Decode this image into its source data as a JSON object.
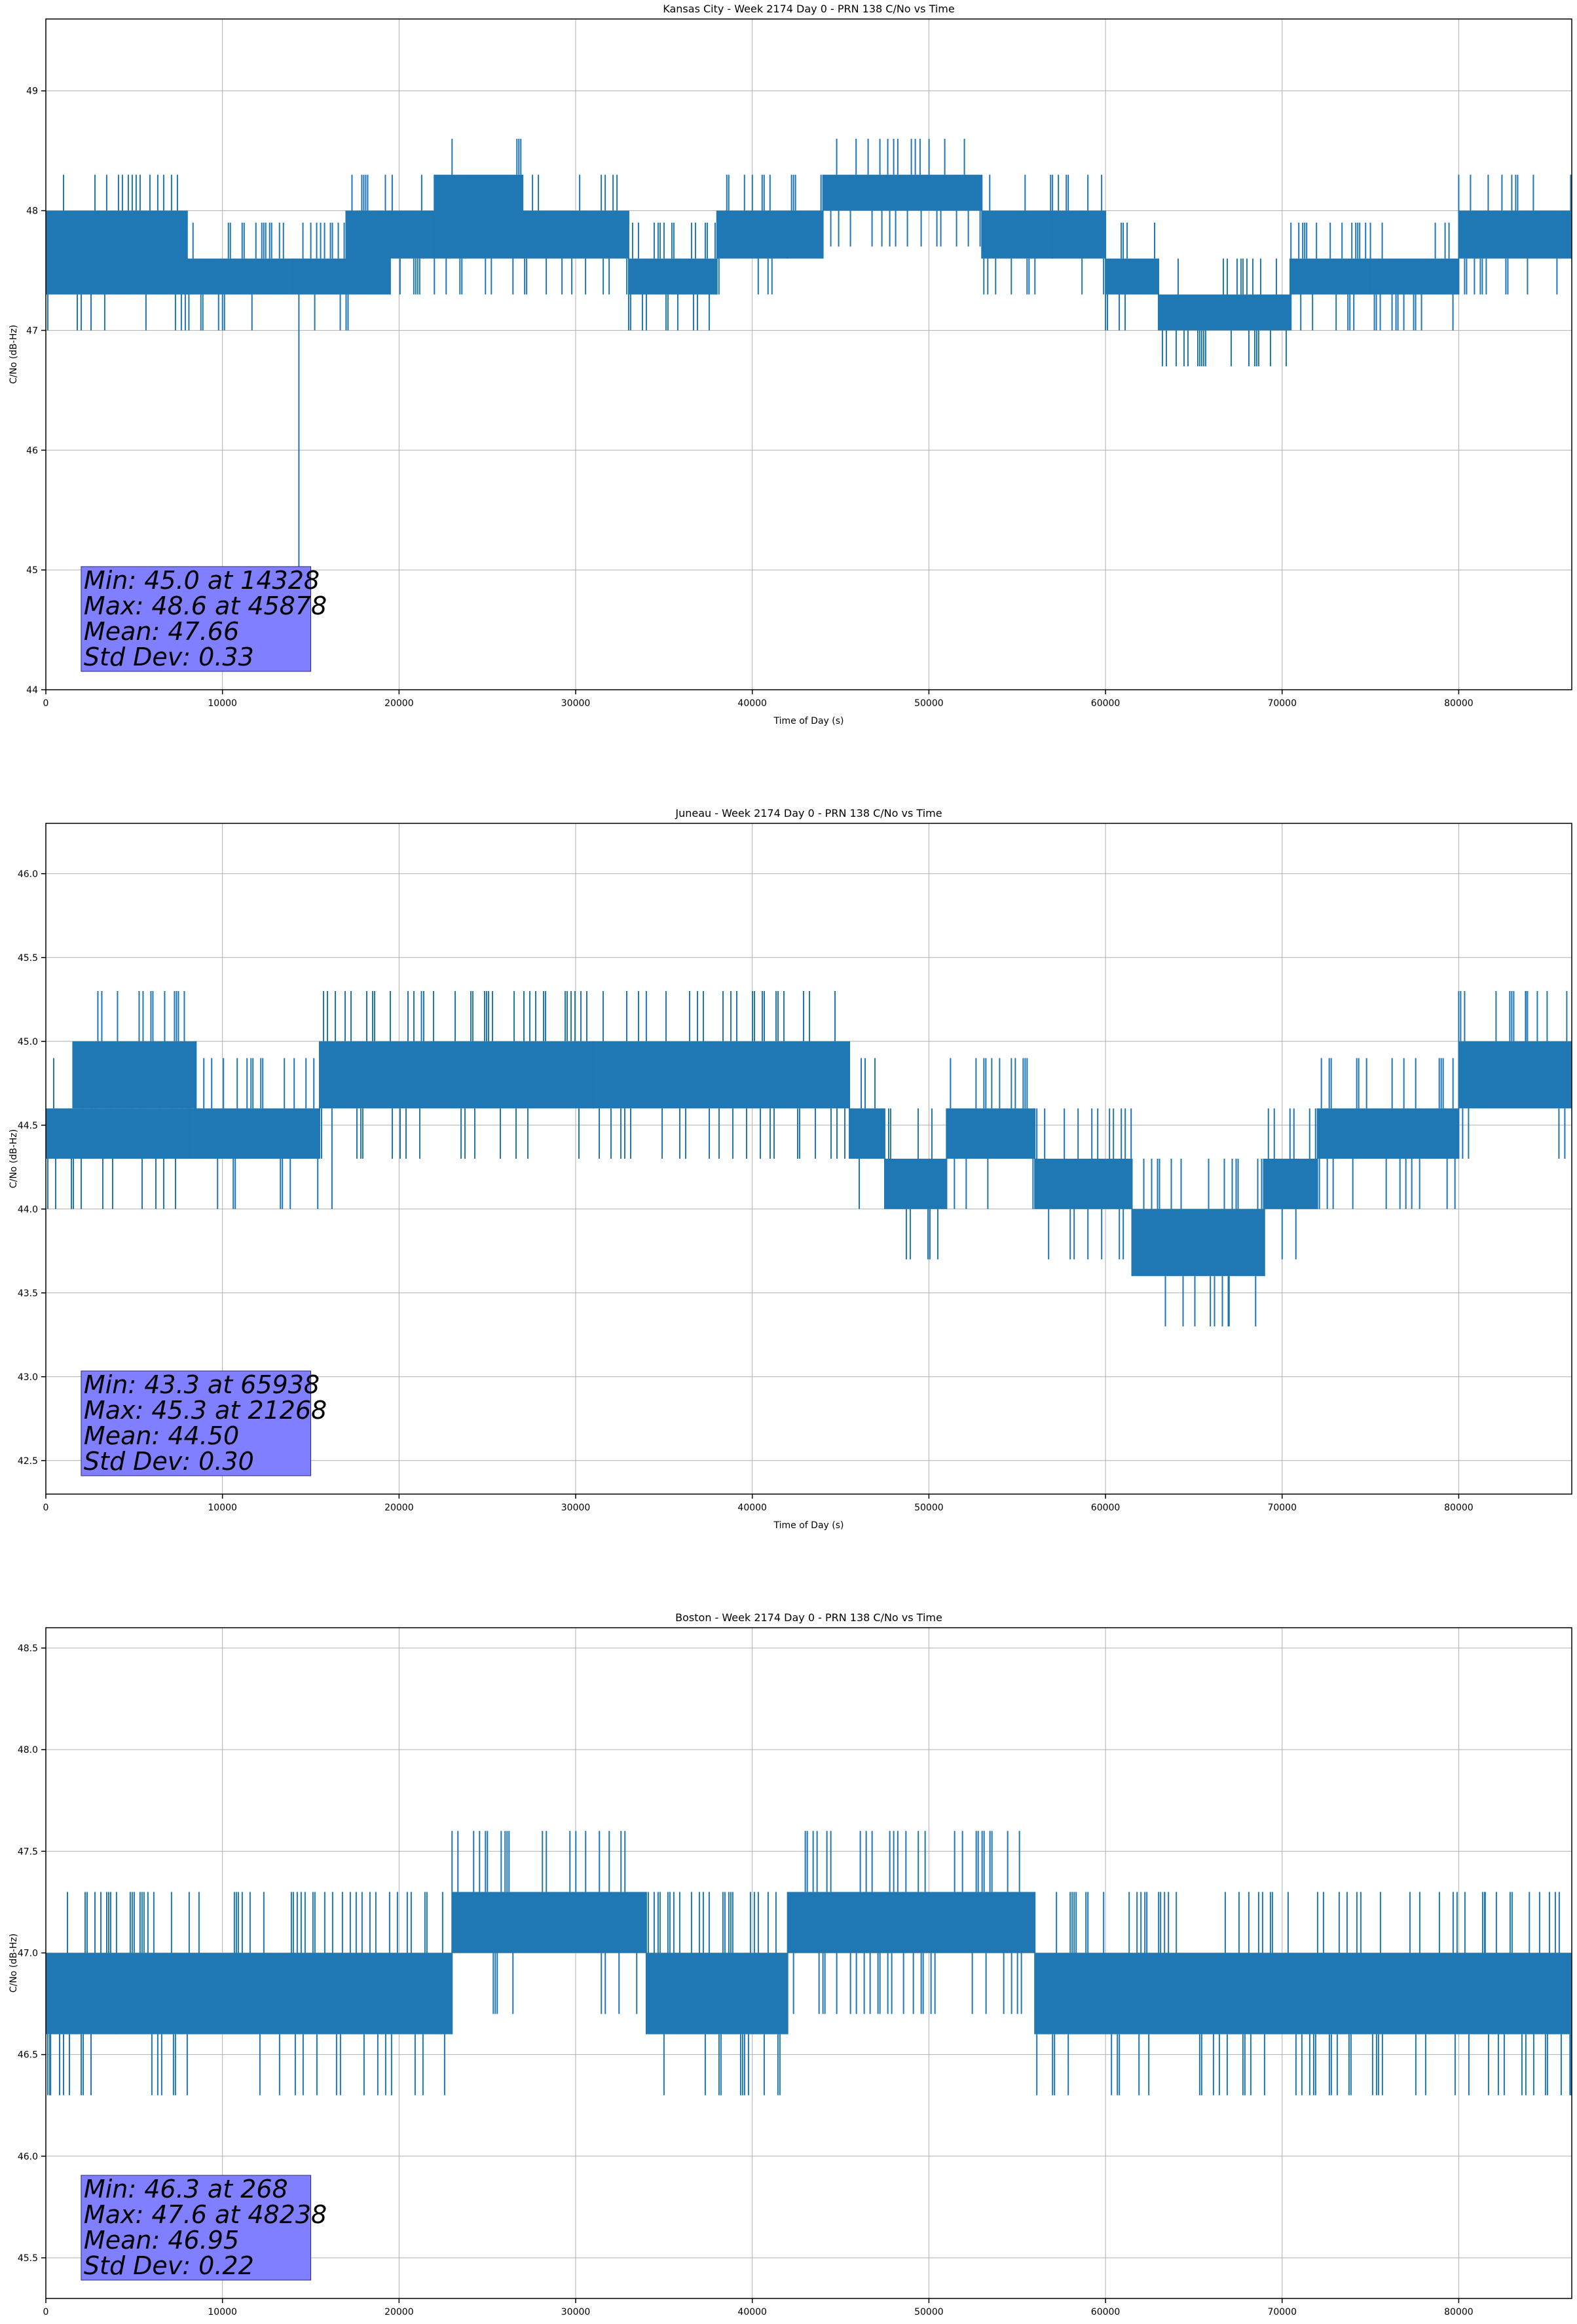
{
  "chart_data": [
    {
      "type": "line",
      "title": "Kansas City - Week 2174 Day 0 - PRN 138 C/No vs Time",
      "xlabel": "Time of Day (s)",
      "ylabel": "C/No (dB-Hz)",
      "xlim": [
        0,
        86400
      ],
      "ylim": [
        44,
        49.6
      ],
      "xticks": [
        0,
        10000,
        20000,
        30000,
        40000,
        50000,
        60000,
        70000,
        80000
      ],
      "yticks": [
        44,
        45,
        46,
        47,
        48,
        49
      ],
      "grid": true,
      "color": "#1f77b4",
      "band_segments": [
        {
          "x0": 0,
          "x1": 3000,
          "lo": 47.3,
          "hi": 48.0
        },
        {
          "x0": 3000,
          "x1": 8000,
          "lo": 47.3,
          "hi": 48.0
        },
        {
          "x0": 8000,
          "x1": 14000,
          "lo": 47.3,
          "hi": 47.6
        },
        {
          "x0": 14000,
          "x1": 17000,
          "lo": 47.3,
          "hi": 47.6
        },
        {
          "x0": 17000,
          "x1": 19500,
          "lo": 47.3,
          "hi": 48.0
        },
        {
          "x0": 19500,
          "x1": 22000,
          "lo": 47.6,
          "hi": 48.0
        },
        {
          "x0": 22000,
          "x1": 27000,
          "lo": 47.6,
          "hi": 48.3
        },
        {
          "x0": 27000,
          "x1": 33000,
          "lo": 47.6,
          "hi": 48.0
        },
        {
          "x0": 33000,
          "x1": 38000,
          "lo": 47.3,
          "hi": 47.6
        },
        {
          "x0": 38000,
          "x1": 42000,
          "lo": 47.6,
          "hi": 48.0
        },
        {
          "x0": 42000,
          "x1": 44000,
          "lo": 47.6,
          "hi": 48.0
        },
        {
          "x0": 44000,
          "x1": 53000,
          "lo": 48.0,
          "hi": 48.3
        },
        {
          "x0": 53000,
          "x1": 57000,
          "lo": 47.6,
          "hi": 48.0
        },
        {
          "x0": 57000,
          "x1": 60000,
          "lo": 47.6,
          "hi": 48.0
        },
        {
          "x0": 60000,
          "x1": 63000,
          "lo": 47.3,
          "hi": 47.6
        },
        {
          "x0": 63000,
          "x1": 70500,
          "lo": 47.0,
          "hi": 47.3
        },
        {
          "x0": 70500,
          "x1": 75000,
          "lo": 47.3,
          "hi": 47.6
        },
        {
          "x0": 75000,
          "x1": 80000,
          "lo": 47.3,
          "hi": 47.6
        },
        {
          "x0": 80000,
          "x1": 86400,
          "lo": 47.6,
          "hi": 48.0
        }
      ],
      "spikes": [
        {
          "x": 14328,
          "y": 45.0
        },
        {
          "x": 8100,
          "y": 47.0
        },
        {
          "x": 45878,
          "y": 48.6
        },
        {
          "x": 48238,
          "y": 48.6
        },
        {
          "x": 49500,
          "y": 48.6
        },
        {
          "x": 81000,
          "y": 48.0
        }
      ],
      "annotation": [
        "Min: 45.0 at 14328",
        "Max: 48.6 at 45878",
        "Mean: 47.66",
        "Std Dev: 0.33"
      ]
    },
    {
      "type": "line",
      "title": "Juneau - Week 2174 Day 0 - PRN 138 C/No vs Time",
      "xlabel": "Time of Day (s)",
      "ylabel": "C/No (dB-Hz)",
      "xlim": [
        0,
        86400
      ],
      "ylim": [
        42.3,
        46.3
      ],
      "xticks": [
        0,
        10000,
        20000,
        30000,
        40000,
        50000,
        60000,
        70000,
        80000
      ],
      "yticks": [
        42.5,
        43.0,
        43.5,
        44.0,
        44.5,
        45.0,
        45.5,
        46.0
      ],
      "grid": true,
      "color": "#1f77b4",
      "band_segments": [
        {
          "x0": 0,
          "x1": 8500,
          "lo": 44.3,
          "hi": 44.6
        },
        {
          "x0": 1500,
          "x1": 8500,
          "lo": 44.6,
          "hi": 45.0
        },
        {
          "x0": 8500,
          "x1": 15500,
          "lo": 44.3,
          "hi": 44.6
        },
        {
          "x0": 15500,
          "x1": 31000,
          "lo": 44.6,
          "hi": 45.0
        },
        {
          "x0": 31000,
          "x1": 45500,
          "lo": 44.6,
          "hi": 45.0
        },
        {
          "x0": 45500,
          "x1": 47500,
          "lo": 44.3,
          "hi": 44.6
        },
        {
          "x0": 47500,
          "x1": 51000,
          "lo": 44.0,
          "hi": 44.3
        },
        {
          "x0": 51000,
          "x1": 56000,
          "lo": 44.3,
          "hi": 44.6
        },
        {
          "x0": 56000,
          "x1": 61500,
          "lo": 44.0,
          "hi": 44.3
        },
        {
          "x0": 61500,
          "x1": 69000,
          "lo": 43.6,
          "hi": 44.0
        },
        {
          "x0": 69000,
          "x1": 72000,
          "lo": 44.0,
          "hi": 44.3
        },
        {
          "x0": 72000,
          "x1": 80000,
          "lo": 44.3,
          "hi": 44.6
        },
        {
          "x0": 80000,
          "x1": 86400,
          "lo": 44.6,
          "hi": 45.0
        }
      ],
      "spikes": [
        {
          "x": 21268,
          "y": 45.3
        },
        {
          "x": 34000,
          "y": 45.3
        },
        {
          "x": 83800,
          "y": 45.3
        },
        {
          "x": 16200,
          "y": 44.0
        },
        {
          "x": 1100,
          "y": 44.3
        },
        {
          "x": 65938,
          "y": 43.3
        },
        {
          "x": 67000,
          "y": 43.3
        },
        {
          "x": 68500,
          "y": 43.3
        }
      ],
      "annotation": [
        "Min: 43.3 at 65938",
        "Max: 45.3 at 21268",
        "Mean: 44.50",
        "Std Dev: 0.30"
      ]
    },
    {
      "type": "line",
      "title": "Boston - Week 2174 Day 0 - PRN 138 C/No vs Time",
      "xlabel": "Time of Day (s)",
      "ylabel": "C/No (dB-Hz)",
      "xlim": [
        0,
        86400
      ],
      "ylim": [
        45.3,
        48.6
      ],
      "xticks": [
        0,
        10000,
        20000,
        30000,
        40000,
        50000,
        60000,
        70000,
        80000
      ],
      "yticks": [
        45.5,
        46.0,
        46.5,
        47.0,
        47.5,
        48.0,
        48.5
      ],
      "grid": true,
      "color": "#1f77b4",
      "band_segments": [
        {
          "x0": 0,
          "x1": 4000,
          "lo": 46.6,
          "hi": 47.0
        },
        {
          "x0": 4000,
          "x1": 23000,
          "lo": 46.6,
          "hi": 47.0
        },
        {
          "x0": 23000,
          "x1": 34000,
          "lo": 47.0,
          "hi": 47.3
        },
        {
          "x0": 34000,
          "x1": 42000,
          "lo": 46.6,
          "hi": 47.0
        },
        {
          "x0": 42000,
          "x1": 56000,
          "lo": 47.0,
          "hi": 47.3
        },
        {
          "x0": 56000,
          "x1": 65000,
          "lo": 46.6,
          "hi": 47.0
        },
        {
          "x0": 65000,
          "x1": 86400,
          "lo": 46.6,
          "hi": 47.0
        }
      ],
      "spikes": [
        {
          "x": 268,
          "y": 46.3
        },
        {
          "x": 48238,
          "y": 47.6
        },
        {
          "x": 48700,
          "y": 47.6
        },
        {
          "x": 49400,
          "y": 47.6
        },
        {
          "x": 81500,
          "y": 47.3
        },
        {
          "x": 84000,
          "y": 47.3
        },
        {
          "x": 86300,
          "y": 46.3
        }
      ],
      "annotation": [
        "Min: 46.3 at 268",
        "Max: 47.6 at 48238",
        "Mean: 46.95",
        "Std Dev: 0.22"
      ]
    }
  ]
}
